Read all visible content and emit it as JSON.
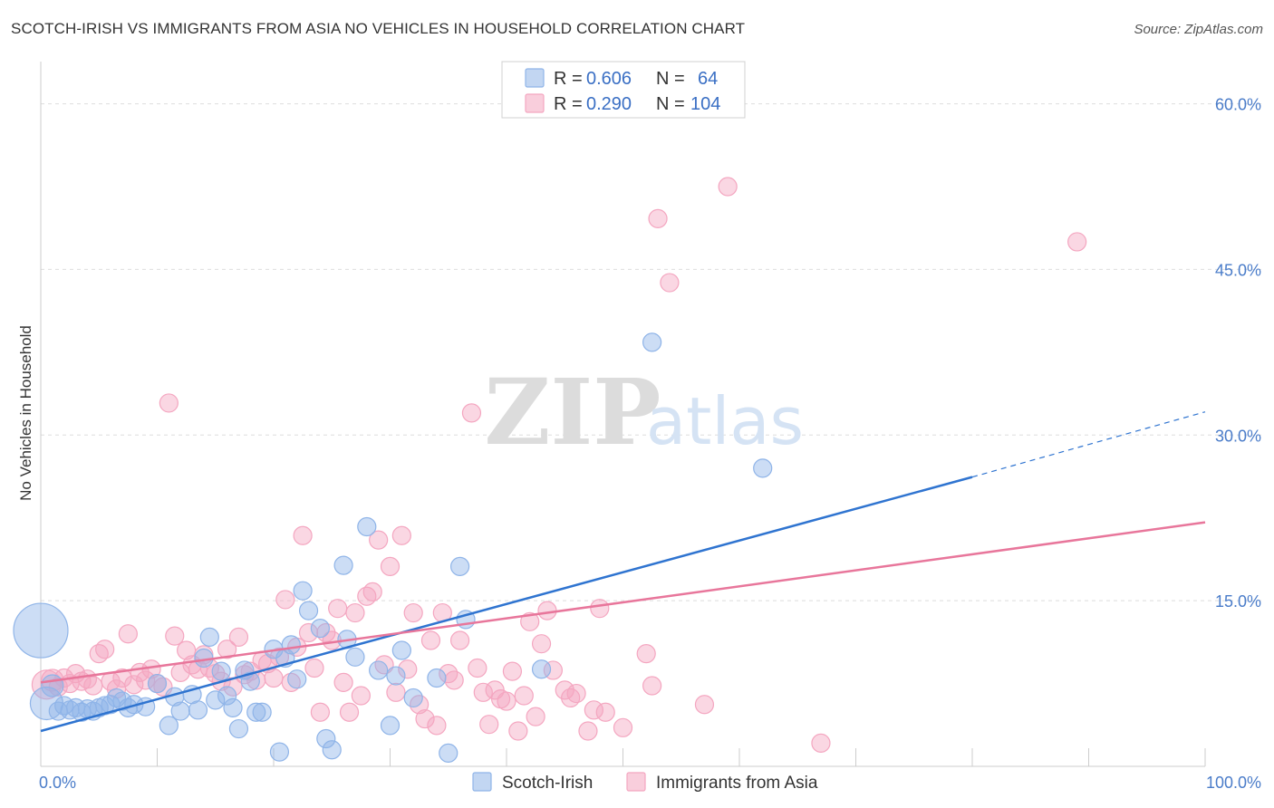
{
  "header": {
    "title": "SCOTCH-IRISH VS IMMIGRANTS FROM ASIA NO VEHICLES IN HOUSEHOLD CORRELATION CHART",
    "source": "Source: ZipAtlas.com"
  },
  "watermark": {
    "zip": "ZIP",
    "atlas": "atlas"
  },
  "legend": {
    "rows": [
      {
        "r_label": "R = ",
        "r_value": "0.606",
        "n_label": "N = ",
        "n_value": "64",
        "color": "#8fb4e8"
      },
      {
        "r_label": "R = ",
        "r_value": "0.290",
        "n_label": "N = ",
        "n_value": "104",
        "color": "#f4a6c0"
      }
    ]
  },
  "chart_data": {
    "type": "scatter",
    "title": "SCOTCH-IRISH VS IMMIGRANTS FROM ASIA NO VEHICLES IN HOUSEHOLD CORRELATION CHART",
    "xlabel": "",
    "ylabel": "No Vehicles in Household",
    "xlim": [
      0,
      100
    ],
    "ylim": [
      0,
      63
    ],
    "x_tick_labels": [
      "0.0%",
      "100.0%"
    ],
    "y_ticks": [
      15,
      30,
      45,
      60
    ],
    "y_tick_labels": [
      "15.0%",
      "30.0%",
      "45.0%",
      "60.0%"
    ],
    "grid": true,
    "legend_position": "top-center",
    "series": [
      {
        "name": "Scotch-Irish",
        "color": "#8fb4e8",
        "line_color": "#2f74d0",
        "trend": {
          "x0": 0,
          "y0": 3.2,
          "x1": 80,
          "y1": 26.2,
          "dash_to_x": 100,
          "dash_to_y": 32.1
        },
        "points": [
          [
            0,
            12.3,
            30
          ],
          [
            0.5,
            5.7,
            18
          ],
          [
            1,
            7.3,
            12
          ],
          [
            1.5,
            5.0,
            10
          ],
          [
            2,
            5.5,
            10
          ],
          [
            2.5,
            5.1,
            10
          ],
          [
            3,
            5.3,
            10
          ],
          [
            3.5,
            4.9,
            10
          ],
          [
            4,
            5.2,
            10
          ],
          [
            4.5,
            5.0,
            10
          ],
          [
            5,
            5.3,
            10
          ],
          [
            5.5,
            5.5,
            10
          ],
          [
            6,
            5.6,
            10
          ],
          [
            6.5,
            6.2,
            10
          ],
          [
            7,
            5.9,
            10
          ],
          [
            7.5,
            5.3,
            10
          ],
          [
            8,
            5.6,
            10
          ],
          [
            9,
            5.4,
            10
          ],
          [
            10,
            7.5,
            10
          ],
          [
            11,
            3.7,
            10
          ],
          [
            11.5,
            6.3,
            10
          ],
          [
            12,
            5.0,
            10
          ],
          [
            13,
            6.5,
            10
          ],
          [
            13.5,
            5.1,
            10
          ],
          [
            14,
            9.8,
            10
          ],
          [
            14.5,
            11.7,
            10
          ],
          [
            15,
            6.0,
            10
          ],
          [
            15.5,
            8.6,
            10
          ],
          [
            16,
            6.4,
            10
          ],
          [
            16.5,
            5.3,
            10
          ],
          [
            17,
            3.4,
            10
          ],
          [
            17.5,
            8.7,
            10
          ],
          [
            18,
            7.7,
            10
          ],
          [
            18.5,
            4.9,
            10
          ],
          [
            19,
            4.9,
            10
          ],
          [
            20,
            10.6,
            10
          ],
          [
            20.5,
            1.3,
            10
          ],
          [
            21,
            9.8,
            10
          ],
          [
            21.5,
            11.0,
            10
          ],
          [
            22,
            7.9,
            10
          ],
          [
            22.5,
            15.9,
            10
          ],
          [
            23,
            14.1,
            10
          ],
          [
            24,
            12.5,
            10
          ],
          [
            24.5,
            2.5,
            10
          ],
          [
            25,
            1.5,
            10
          ],
          [
            26,
            18.2,
            10
          ],
          [
            26.3,
            11.5,
            10
          ],
          [
            27,
            9.9,
            10
          ],
          [
            28,
            21.7,
            10
          ],
          [
            29,
            8.7,
            10
          ],
          [
            30,
            3.7,
            10
          ],
          [
            30.5,
            8.2,
            10
          ],
          [
            31,
            10.5,
            10
          ],
          [
            32,
            6.2,
            10
          ],
          [
            34,
            8.0,
            10
          ],
          [
            35,
            1.2,
            10
          ],
          [
            36,
            18.1,
            10
          ],
          [
            36.5,
            13.3,
            10
          ],
          [
            43,
            8.8,
            10
          ],
          [
            52.5,
            38.4,
            10
          ],
          [
            62,
            27.0,
            10
          ]
        ]
      },
      {
        "name": "Immigrants from Asia",
        "color": "#f4a6c0",
        "line_color": "#e8769b",
        "trend": {
          "x0": 0,
          "y0": 7.6,
          "x1": 100,
          "y1": 22.1
        },
        "points": [
          [
            0.5,
            7.4,
            16
          ],
          [
            1,
            7.8,
            12
          ],
          [
            1.5,
            7.2,
            10
          ],
          [
            2,
            8.0,
            10
          ],
          [
            2.5,
            7.5,
            10
          ],
          [
            3,
            8.4,
            10
          ],
          [
            3.5,
            7.7,
            10
          ],
          [
            4,
            7.9,
            10
          ],
          [
            4.5,
            7.3,
            10
          ],
          [
            5,
            10.2,
            10
          ],
          [
            5.5,
            10.6,
            10
          ],
          [
            6,
            7.7,
            10
          ],
          [
            6.5,
            7.0,
            10
          ],
          [
            7,
            8.0,
            10
          ],
          [
            7.5,
            12.0,
            10
          ],
          [
            8,
            7.4,
            10
          ],
          [
            8.5,
            8.5,
            10
          ],
          [
            9,
            7.8,
            10
          ],
          [
            9.5,
            8.8,
            10
          ],
          [
            10,
            7.5,
            10
          ],
          [
            10.5,
            7.2,
            10
          ],
          [
            11,
            32.9,
            10
          ],
          [
            11.5,
            11.8,
            10
          ],
          [
            12,
            8.5,
            10
          ],
          [
            12.5,
            10.5,
            10
          ],
          [
            13,
            9.2,
            10
          ],
          [
            13.5,
            8.8,
            10
          ],
          [
            14,
            10.1,
            10
          ],
          [
            14.5,
            8.9,
            10
          ],
          [
            15,
            8.4,
            10
          ],
          [
            15.5,
            7.7,
            10
          ],
          [
            16,
            10.6,
            10
          ],
          [
            16.5,
            7.2,
            10
          ],
          [
            17,
            11.7,
            10
          ],
          [
            17.5,
            8.3,
            10
          ],
          [
            18,
            8.6,
            10
          ],
          [
            18.5,
            7.8,
            10
          ],
          [
            19,
            9.6,
            10
          ],
          [
            19.5,
            9.3,
            10
          ],
          [
            20,
            8.0,
            10
          ],
          [
            20.5,
            9.9,
            10
          ],
          [
            21,
            15.1,
            10
          ],
          [
            21.5,
            7.6,
            10
          ],
          [
            22,
            10.8,
            10
          ],
          [
            22.5,
            20.9,
            10
          ],
          [
            23,
            12.1,
            10
          ],
          [
            23.5,
            8.9,
            10
          ],
          [
            24,
            4.9,
            10
          ],
          [
            24.5,
            12.1,
            10
          ],
          [
            25,
            11.4,
            10
          ],
          [
            25.5,
            14.3,
            10
          ],
          [
            26,
            7.6,
            10
          ],
          [
            26.5,
            4.9,
            10
          ],
          [
            27,
            13.9,
            10
          ],
          [
            27.5,
            6.4,
            10
          ],
          [
            28,
            15.4,
            10
          ],
          [
            28.5,
            15.8,
            10
          ],
          [
            29,
            20.5,
            10
          ],
          [
            29.5,
            9.2,
            10
          ],
          [
            30,
            18.1,
            10
          ],
          [
            30.5,
            6.7,
            10
          ],
          [
            31,
            20.9,
            10
          ],
          [
            31.5,
            8.8,
            10
          ],
          [
            32,
            13.9,
            10
          ],
          [
            32.5,
            5.6,
            10
          ],
          [
            33,
            4.3,
            10
          ],
          [
            33.5,
            11.4,
            10
          ],
          [
            34,
            3.7,
            10
          ],
          [
            34.5,
            13.9,
            10
          ],
          [
            35,
            8.4,
            10
          ],
          [
            35.5,
            7.8,
            10
          ],
          [
            36,
            11.4,
            10
          ],
          [
            37,
            32.0,
            10
          ],
          [
            37.5,
            8.9,
            10
          ],
          [
            38,
            6.7,
            10
          ],
          [
            38.5,
            3.8,
            10
          ],
          [
            39,
            6.9,
            10
          ],
          [
            39.5,
            6.1,
            10
          ],
          [
            40,
            5.9,
            10
          ],
          [
            40.5,
            8.6,
            10
          ],
          [
            41,
            3.2,
            10
          ],
          [
            41.5,
            6.4,
            10
          ],
          [
            42,
            13.1,
            10
          ],
          [
            42.5,
            4.5,
            10
          ],
          [
            43,
            11.1,
            10
          ],
          [
            43.5,
            14.1,
            10
          ],
          [
            44,
            8.7,
            10
          ],
          [
            45,
            6.9,
            10
          ],
          [
            45.5,
            6.2,
            10
          ],
          [
            46,
            6.6,
            10
          ],
          [
            47,
            3.2,
            10
          ],
          [
            47.5,
            5.1,
            10
          ],
          [
            48,
            14.3,
            10
          ],
          [
            48.5,
            4.9,
            10
          ],
          [
            50,
            3.5,
            10
          ],
          [
            52,
            10.2,
            10
          ],
          [
            52.5,
            7.3,
            10
          ],
          [
            53,
            49.6,
            10
          ],
          [
            54,
            43.8,
            10
          ],
          [
            57,
            5.6,
            10
          ],
          [
            59,
            52.5,
            10
          ],
          [
            67,
            2.1,
            10
          ],
          [
            89,
            47.5,
            10
          ]
        ]
      }
    ]
  }
}
